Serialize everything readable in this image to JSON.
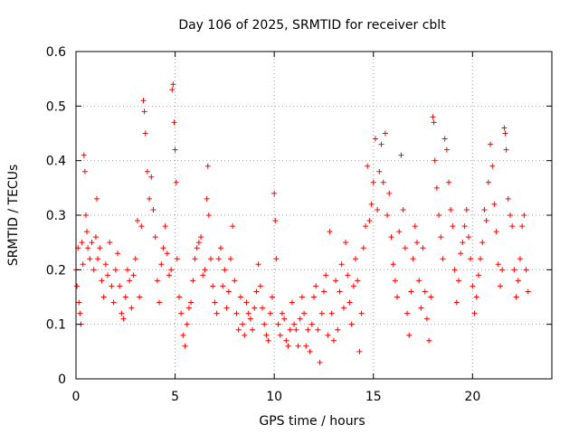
{
  "chart_data": {
    "type": "scatter",
    "title": "Day 106 of 2025, SRMTID for receiver cblt",
    "xlabel": "GPS time / hours",
    "ylabel": "SRMTID / TECUs",
    "xlim": [
      0,
      24
    ],
    "ylim": [
      0,
      0.6
    ],
    "x_ticks": [
      0,
      5,
      10,
      15,
      20
    ],
    "x_tick_labels": [
      "0",
      "5",
      "10",
      "15",
      "20"
    ],
    "y_ticks": [
      0,
      0.1,
      0.2,
      0.3,
      0.4,
      0.5,
      0.6
    ],
    "y_tick_labels": [
      "0",
      "0.1",
      "0.2",
      "0.3",
      "0.4",
      "0.5",
      "0.6"
    ],
    "grid": true,
    "marker": "+",
    "marker_color": "#ff0000",
    "series": [
      {
        "name": "SRMTID",
        "points": [
          [
            0.0,
            0.2
          ],
          [
            0.05,
            0.17
          ],
          [
            0.1,
            0.24
          ],
          [
            0.15,
            0.14
          ],
          [
            0.2,
            0.12
          ],
          [
            0.25,
            0.1
          ],
          [
            0.3,
            0.25
          ],
          [
            0.35,
            0.21
          ],
          [
            0.4,
            0.41
          ],
          [
            0.45,
            0.38
          ],
          [
            0.5,
            0.3
          ],
          [
            0.55,
            0.27
          ],
          [
            0.6,
            0.24
          ],
          [
            0.7,
            0.22
          ],
          [
            0.8,
            0.25
          ],
          [
            0.9,
            0.2
          ],
          [
            1.0,
            0.26
          ],
          [
            1.05,
            0.33
          ],
          [
            1.1,
            0.22
          ],
          [
            1.2,
            0.24
          ],
          [
            1.3,
            0.18
          ],
          [
            1.4,
            0.15
          ],
          [
            1.5,
            0.21
          ],
          [
            1.6,
            0.19
          ],
          [
            1.7,
            0.25
          ],
          [
            1.8,
            0.17
          ],
          [
            1.9,
            0.14
          ],
          [
            2.0,
            0.2
          ],
          [
            2.1,
            0.23
          ],
          [
            2.2,
            0.17
          ],
          [
            2.3,
            0.12
          ],
          [
            2.4,
            0.11
          ],
          [
            2.5,
            0.15
          ],
          [
            2.6,
            0.2
          ],
          [
            2.7,
            0.18
          ],
          [
            2.8,
            0.13
          ],
          [
            2.9,
            0.19
          ],
          [
            3.0,
            0.22
          ],
          [
            3.1,
            0.29
          ],
          [
            3.2,
            0.15
          ],
          [
            3.3,
            0.28
          ],
          [
            3.4,
            0.51
          ],
          [
            3.45,
            0.49
          ],
          [
            3.5,
            0.45
          ],
          [
            3.6,
            0.38
          ],
          [
            3.7,
            0.33
          ],
          [
            3.8,
            0.37
          ],
          [
            3.9,
            0.31
          ],
          [
            4.0,
            0.26
          ],
          [
            4.1,
            0.18
          ],
          [
            4.2,
            0.14
          ],
          [
            4.3,
            0.21
          ],
          [
            4.4,
            0.24
          ],
          [
            4.5,
            0.28
          ],
          [
            4.6,
            0.23
          ],
          [
            4.7,
            0.19
          ],
          [
            4.8,
            0.2
          ],
          [
            4.85,
            0.53
          ],
          [
            4.9,
            0.54
          ],
          [
            4.95,
            0.47
          ],
          [
            5.0,
            0.42
          ],
          [
            5.05,
            0.36
          ],
          [
            5.1,
            0.22
          ],
          [
            5.2,
            0.15
          ],
          [
            5.3,
            0.12
          ],
          [
            5.4,
            0.08
          ],
          [
            5.5,
            0.06
          ],
          [
            5.6,
            0.1
          ],
          [
            5.7,
            0.13
          ],
          [
            5.8,
            0.14
          ],
          [
            5.9,
            0.18
          ],
          [
            6.0,
            0.22
          ],
          [
            6.1,
            0.24
          ],
          [
            6.2,
            0.25
          ],
          [
            6.3,
            0.26
          ],
          [
            6.4,
            0.19
          ],
          [
            6.5,
            0.2
          ],
          [
            6.6,
            0.33
          ],
          [
            6.65,
            0.39
          ],
          [
            6.7,
            0.3
          ],
          [
            6.8,
            0.22
          ],
          [
            6.9,
            0.17
          ],
          [
            7.0,
            0.14
          ],
          [
            7.1,
            0.12
          ],
          [
            7.2,
            0.22
          ],
          [
            7.3,
            0.24
          ],
          [
            7.4,
            0.17
          ],
          [
            7.5,
            0.2
          ],
          [
            7.6,
            0.13
          ],
          [
            7.7,
            0.16
          ],
          [
            7.8,
            0.22
          ],
          [
            7.9,
            0.28
          ],
          [
            8.0,
            0.18
          ],
          [
            8.1,
            0.12
          ],
          [
            8.2,
            0.09
          ],
          [
            8.3,
            0.15
          ],
          [
            8.4,
            0.1
          ],
          [
            8.5,
            0.08
          ],
          [
            8.6,
            0.14
          ],
          [
            8.7,
            0.12
          ],
          [
            8.8,
            0.11
          ],
          [
            8.9,
            0.09
          ],
          [
            9.0,
            0.13
          ],
          [
            9.1,
            0.16
          ],
          [
            9.2,
            0.21
          ],
          [
            9.3,
            0.17
          ],
          [
            9.4,
            0.13
          ],
          [
            9.5,
            0.1
          ],
          [
            9.6,
            0.08
          ],
          [
            9.7,
            0.07
          ],
          [
            9.8,
            0.12
          ],
          [
            9.9,
            0.15
          ],
          [
            10.0,
            0.34
          ],
          [
            10.05,
            0.29
          ],
          [
            10.1,
            0.22
          ],
          [
            10.2,
            0.1
          ],
          [
            10.3,
            0.08
          ],
          [
            10.4,
            0.12
          ],
          [
            10.5,
            0.11
          ],
          [
            10.6,
            0.07
          ],
          [
            10.7,
            0.06
          ],
          [
            10.8,
            0.09
          ],
          [
            10.9,
            0.14
          ],
          [
            11.0,
            0.1
          ],
          [
            11.1,
            0.09
          ],
          [
            11.2,
            0.06
          ],
          [
            11.3,
            0.11
          ],
          [
            11.4,
            0.15
          ],
          [
            11.5,
            0.12
          ],
          [
            11.6,
            0.06
          ],
          [
            11.7,
            0.09
          ],
          [
            11.8,
            0.05
          ],
          [
            11.9,
            0.1
          ],
          [
            12.0,
            0.15
          ],
          [
            12.1,
            0.17
          ],
          [
            12.2,
            0.09
          ],
          [
            12.3,
            0.03
          ],
          [
            12.4,
            0.12
          ],
          [
            12.5,
            0.16
          ],
          [
            12.6,
            0.19
          ],
          [
            12.7,
            0.08
          ],
          [
            12.8,
            0.27
          ],
          [
            12.9,
            0.12
          ],
          [
            13.0,
            0.07
          ],
          [
            13.1,
            0.18
          ],
          [
            13.2,
            0.09
          ],
          [
            13.3,
            0.16
          ],
          [
            13.4,
            0.21
          ],
          [
            13.5,
            0.13
          ],
          [
            13.6,
            0.25
          ],
          [
            13.7,
            0.19
          ],
          [
            13.8,
            0.14
          ],
          [
            13.9,
            0.1
          ],
          [
            14.0,
            0.17
          ],
          [
            14.1,
            0.22
          ],
          [
            14.2,
            0.18
          ],
          [
            14.3,
            0.05
          ],
          [
            14.4,
            0.12
          ],
          [
            14.5,
            0.24
          ],
          [
            14.6,
            0.28
          ],
          [
            14.7,
            0.39
          ],
          [
            14.8,
            0.29
          ],
          [
            14.9,
            0.32
          ],
          [
            15.0,
            0.36
          ],
          [
            15.1,
            0.44
          ],
          [
            15.2,
            0.31
          ],
          [
            15.3,
            0.38
          ],
          [
            15.4,
            0.43
          ],
          [
            15.5,
            0.36
          ],
          [
            15.6,
            0.45
          ],
          [
            15.7,
            0.3
          ],
          [
            15.8,
            0.34
          ],
          [
            15.9,
            0.26
          ],
          [
            16.0,
            0.21
          ],
          [
            16.1,
            0.18
          ],
          [
            16.2,
            0.15
          ],
          [
            16.3,
            0.27
          ],
          [
            16.4,
            0.41
          ],
          [
            16.5,
            0.31
          ],
          [
            16.6,
            0.24
          ],
          [
            16.7,
            0.12
          ],
          [
            16.8,
            0.08
          ],
          [
            16.9,
            0.16
          ],
          [
            17.0,
            0.22
          ],
          [
            17.1,
            0.28
          ],
          [
            17.2,
            0.25
          ],
          [
            17.3,
            0.18
          ],
          [
            17.4,
            0.13
          ],
          [
            17.5,
            0.24
          ],
          [
            17.6,
            0.16
          ],
          [
            17.7,
            0.11
          ],
          [
            17.8,
            0.07
          ],
          [
            17.9,
            0.15
          ],
          [
            18.0,
            0.48
          ],
          [
            18.05,
            0.47
          ],
          [
            18.1,
            0.4
          ],
          [
            18.2,
            0.35
          ],
          [
            18.3,
            0.3
          ],
          [
            18.4,
            0.26
          ],
          [
            18.5,
            0.22
          ],
          [
            18.6,
            0.44
          ],
          [
            18.7,
            0.42
          ],
          [
            18.8,
            0.36
          ],
          [
            18.9,
            0.31
          ],
          [
            19.0,
            0.28
          ],
          [
            19.1,
            0.2
          ],
          [
            19.2,
            0.14
          ],
          [
            19.3,
            0.18
          ],
          [
            19.4,
            0.23
          ],
          [
            19.5,
            0.25
          ],
          [
            19.6,
            0.28
          ],
          [
            19.7,
            0.31
          ],
          [
            19.8,
            0.26
          ],
          [
            19.9,
            0.22
          ],
          [
            20.0,
            0.17
          ],
          [
            20.1,
            0.12
          ],
          [
            20.2,
            0.15
          ],
          [
            20.3,
            0.19
          ],
          [
            20.4,
            0.22
          ],
          [
            20.5,
            0.25
          ],
          [
            20.6,
            0.31
          ],
          [
            20.7,
            0.29
          ],
          [
            20.8,
            0.36
          ],
          [
            20.9,
            0.43
          ],
          [
            21.0,
            0.39
          ],
          [
            21.1,
            0.32
          ],
          [
            21.2,
            0.27
          ],
          [
            21.3,
            0.21
          ],
          [
            21.4,
            0.17
          ],
          [
            21.5,
            0.2
          ],
          [
            21.6,
            0.46
          ],
          [
            21.65,
            0.45
          ],
          [
            21.7,
            0.42
          ],
          [
            21.8,
            0.33
          ],
          [
            21.9,
            0.3
          ],
          [
            22.0,
            0.28
          ],
          [
            22.1,
            0.2
          ],
          [
            22.2,
            0.15
          ],
          [
            22.3,
            0.18
          ],
          [
            22.4,
            0.22
          ],
          [
            22.5,
            0.28
          ],
          [
            22.6,
            0.3
          ],
          [
            22.7,
            0.2
          ],
          [
            22.8,
            0.16
          ]
        ]
      }
    ]
  }
}
